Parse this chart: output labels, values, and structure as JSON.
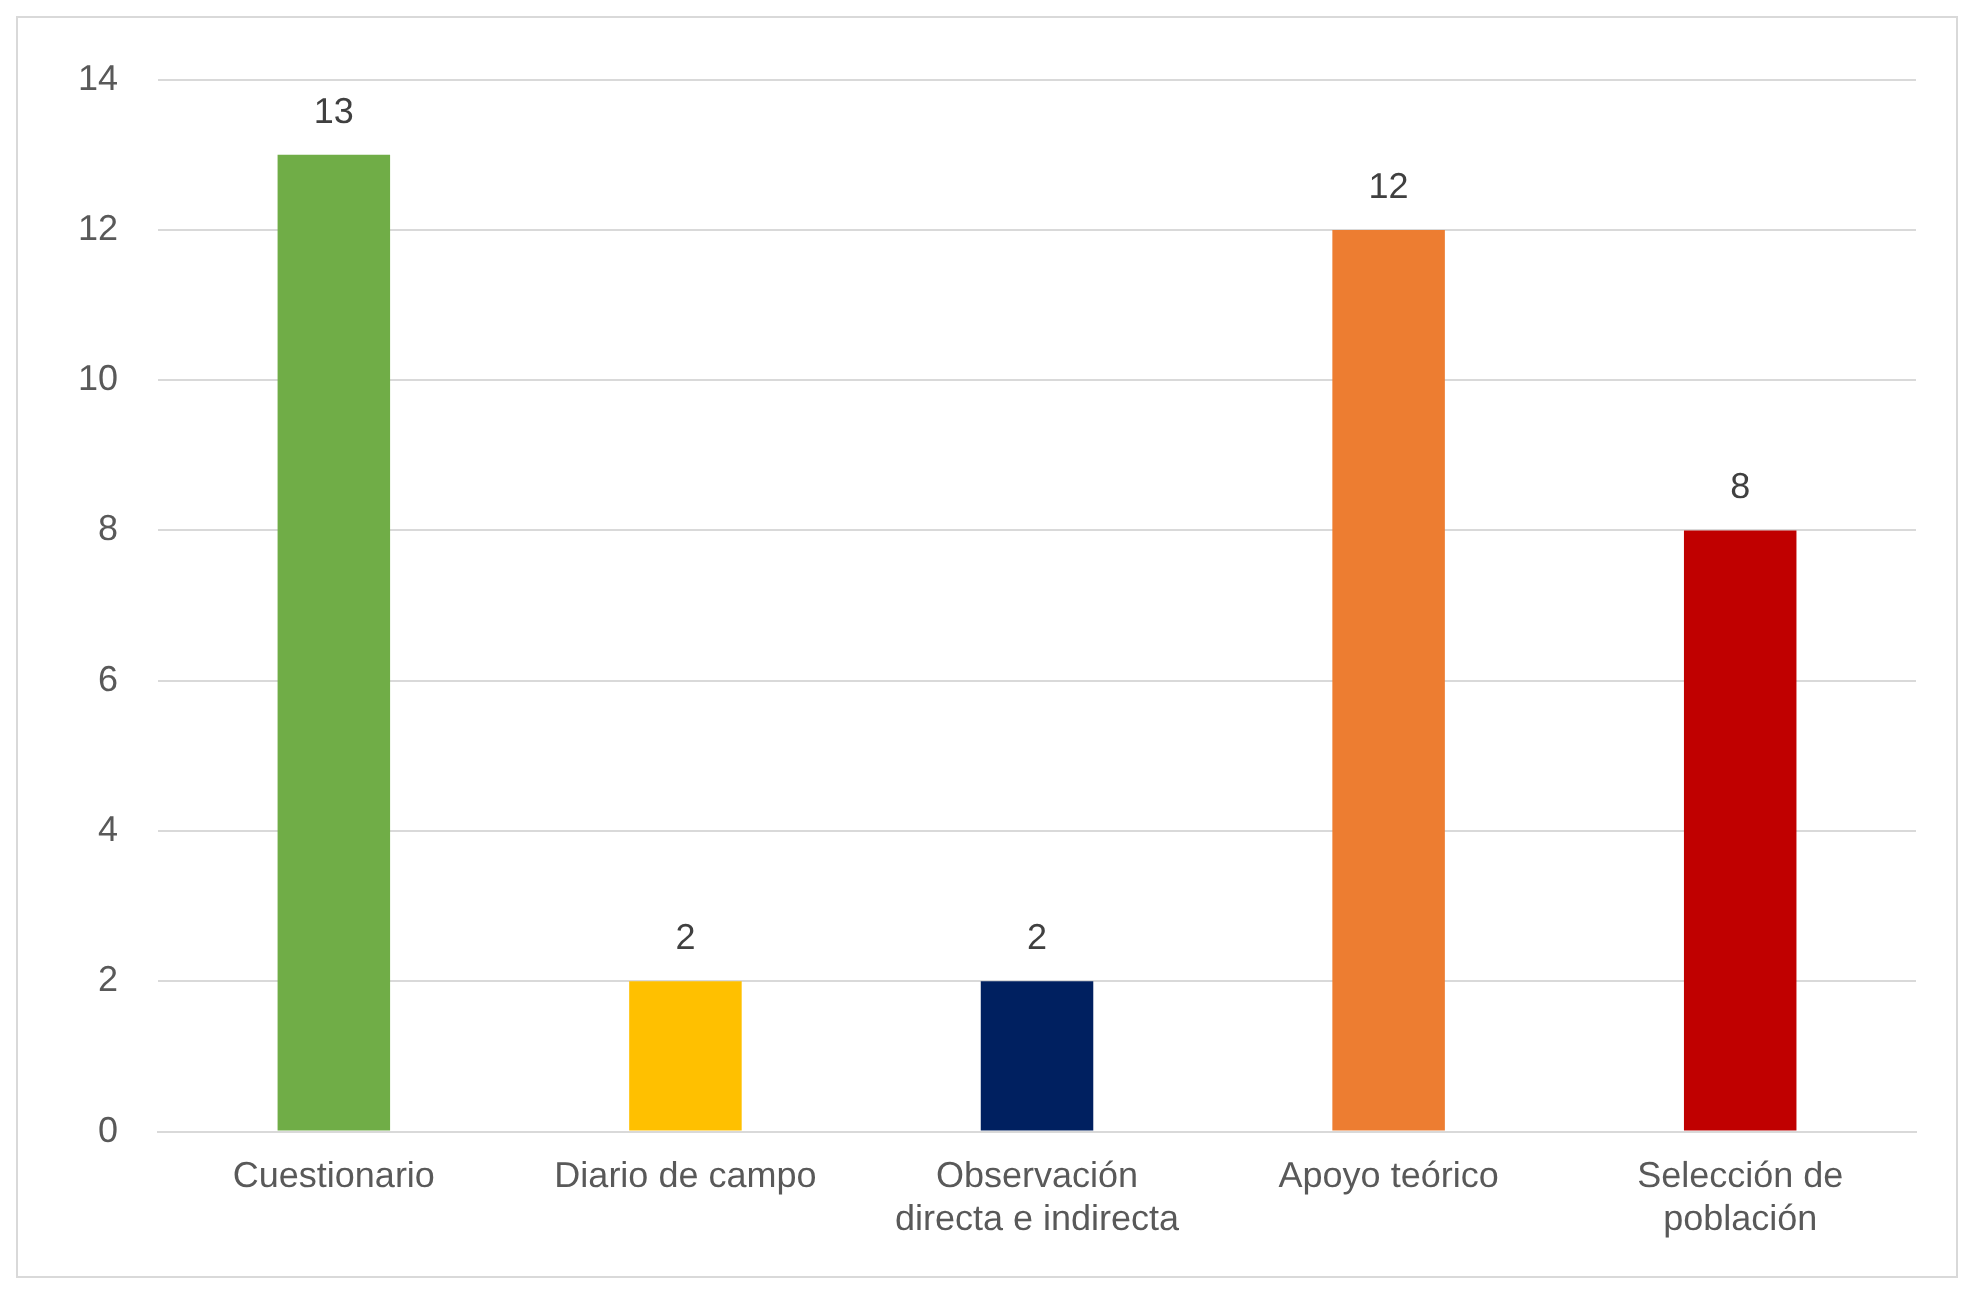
{
  "chart_data": {
    "type": "bar",
    "categories": [
      "Cuestionario",
      "Diario de campo",
      "Observación\ndirecta e indirecta",
      "Apoyo teórico",
      "Selección de\npoblación"
    ],
    "values": [
      13,
      2,
      2,
      12,
      8
    ],
    "colors": [
      "#70ad47",
      "#ffc000",
      "#002060",
      "#ed7d31",
      "#c00000"
    ],
    "ylim": [
      0,
      14
    ],
    "yticks": [
      0,
      2,
      4,
      6,
      8,
      10,
      12,
      14
    ],
    "grid": "y",
    "data_labels": true,
    "legend": false
  }
}
